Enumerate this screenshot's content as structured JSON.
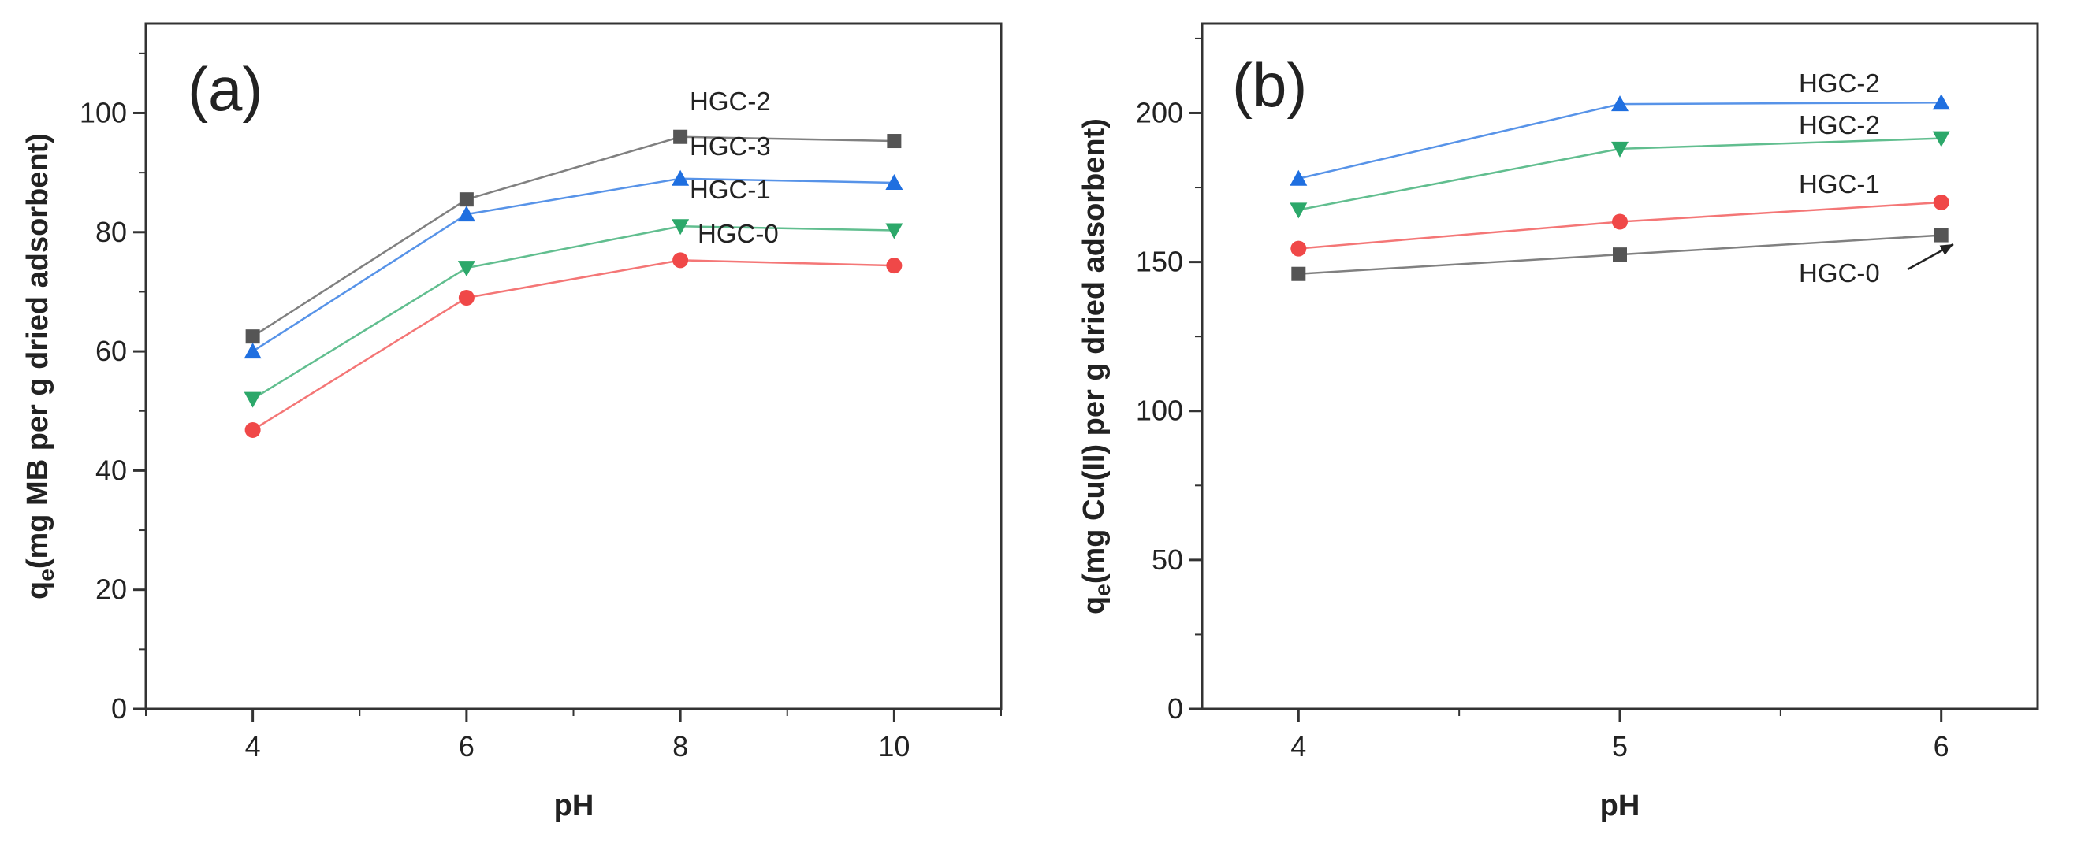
{
  "chart_data": [
    {
      "type": "line",
      "panel_label": "(a)",
      "xlabel": "pH",
      "ylabel_main": "q",
      "ylabel_sub": "e",
      "ylabel_rest": "(mg MB per g dried adsorbent)",
      "x": [
        4,
        6,
        8,
        10
      ],
      "xlim": [
        3,
        11
      ],
      "ylim": [
        0,
        115
      ],
      "xticks": [
        4,
        6,
        8,
        10
      ],
      "yticks": [
        0,
        20,
        40,
        60,
        80,
        100
      ],
      "series": [
        {
          "name": "HGC-2",
          "color": "#555555",
          "marker": "square",
          "values": [
            62.5,
            85.5,
            96,
            95.3
          ]
        },
        {
          "name": "HGC-3",
          "color": "#1f6fe0",
          "marker": "triangle-up",
          "values": [
            60,
            83,
            89,
            88.3
          ]
        },
        {
          "name": "HGC-1",
          "color": "#2ca86a",
          "marker": "triangle-down",
          "values": [
            52,
            74,
            81,
            80.3
          ]
        },
        {
          "name": "HGC-0",
          "color": "#f04848",
          "marker": "circle",
          "values": [
            46.8,
            69,
            75.3,
            74.4
          ]
        }
      ],
      "annotations": [
        "HGC-2",
        "HGC-3",
        "HGC-1",
        "HGC-0"
      ]
    },
    {
      "type": "line",
      "panel_label": "(b)",
      "xlabel": "pH",
      "ylabel_main": "q",
      "ylabel_sub": "e",
      "ylabel_rest": "(mg Cu(II) per g dried adsorbent)",
      "x": [
        4,
        5,
        6
      ],
      "xlim": [
        3.7,
        6.3
      ],
      "ylim": [
        0,
        230
      ],
      "xticks": [
        4,
        5,
        6
      ],
      "yticks": [
        0,
        50,
        100,
        150,
        200
      ],
      "series": [
        {
          "name": "HGC-2",
          "color": "#1f6fe0",
          "marker": "triangle-up",
          "values": [
            178,
            203,
            203.5
          ]
        },
        {
          "name": "HGC-2",
          "color": "#2ca86a",
          "marker": "triangle-down",
          "values": [
            167.5,
            188,
            191.5
          ]
        },
        {
          "name": "HGC-1",
          "color": "#f04848",
          "marker": "circle",
          "values": [
            154.5,
            163.5,
            170
          ]
        },
        {
          "name": "HGC-0",
          "color": "#555555",
          "marker": "square",
          "values": [
            146,
            152.5,
            159
          ]
        }
      ],
      "annotations": [
        "HGC-2",
        "HGC-2",
        "HGC-1",
        "HGC-0"
      ]
    }
  ]
}
